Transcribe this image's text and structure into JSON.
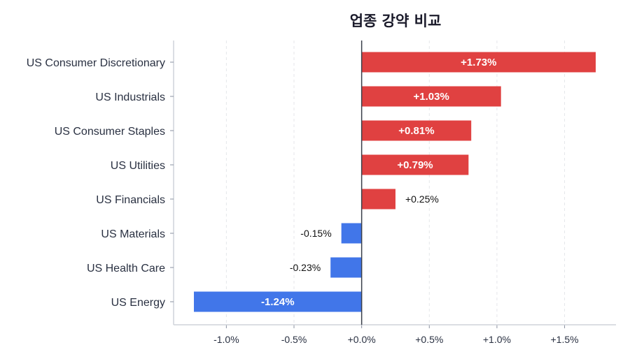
{
  "chart_data": {
    "type": "bar",
    "orientation": "horizontal",
    "title": "업종 강약 비교",
    "categories": [
      "US Consumer Discretionary",
      "US Industrials",
      "US Consumer Staples",
      "US Utilities",
      "US Financials",
      "US Materials",
      "US Health Care",
      "US Energy"
    ],
    "values": [
      1.73,
      1.03,
      0.81,
      0.79,
      0.25,
      -0.15,
      -0.23,
      -1.24
    ],
    "data_labels": [
      "+1.73%",
      "+1.03%",
      "+0.81%",
      "+0.79%",
      "+0.25%",
      "-0.15%",
      "-0.23%",
      "-1.24%"
    ],
    "xticks": [
      -1.0,
      -0.5,
      0.0,
      0.5,
      1.0,
      1.5
    ],
    "xtick_labels": [
      "-1.0%",
      "-0.5%",
      "+0.0%",
      "+0.5%",
      "+1.0%",
      "+1.5%"
    ],
    "xlim": [
      -1.39,
      1.88
    ],
    "xlabel": "",
    "ylabel": "",
    "grid": "vertical dashed",
    "colors": {
      "positive": "#e04141",
      "negative": "#4176e9"
    }
  }
}
